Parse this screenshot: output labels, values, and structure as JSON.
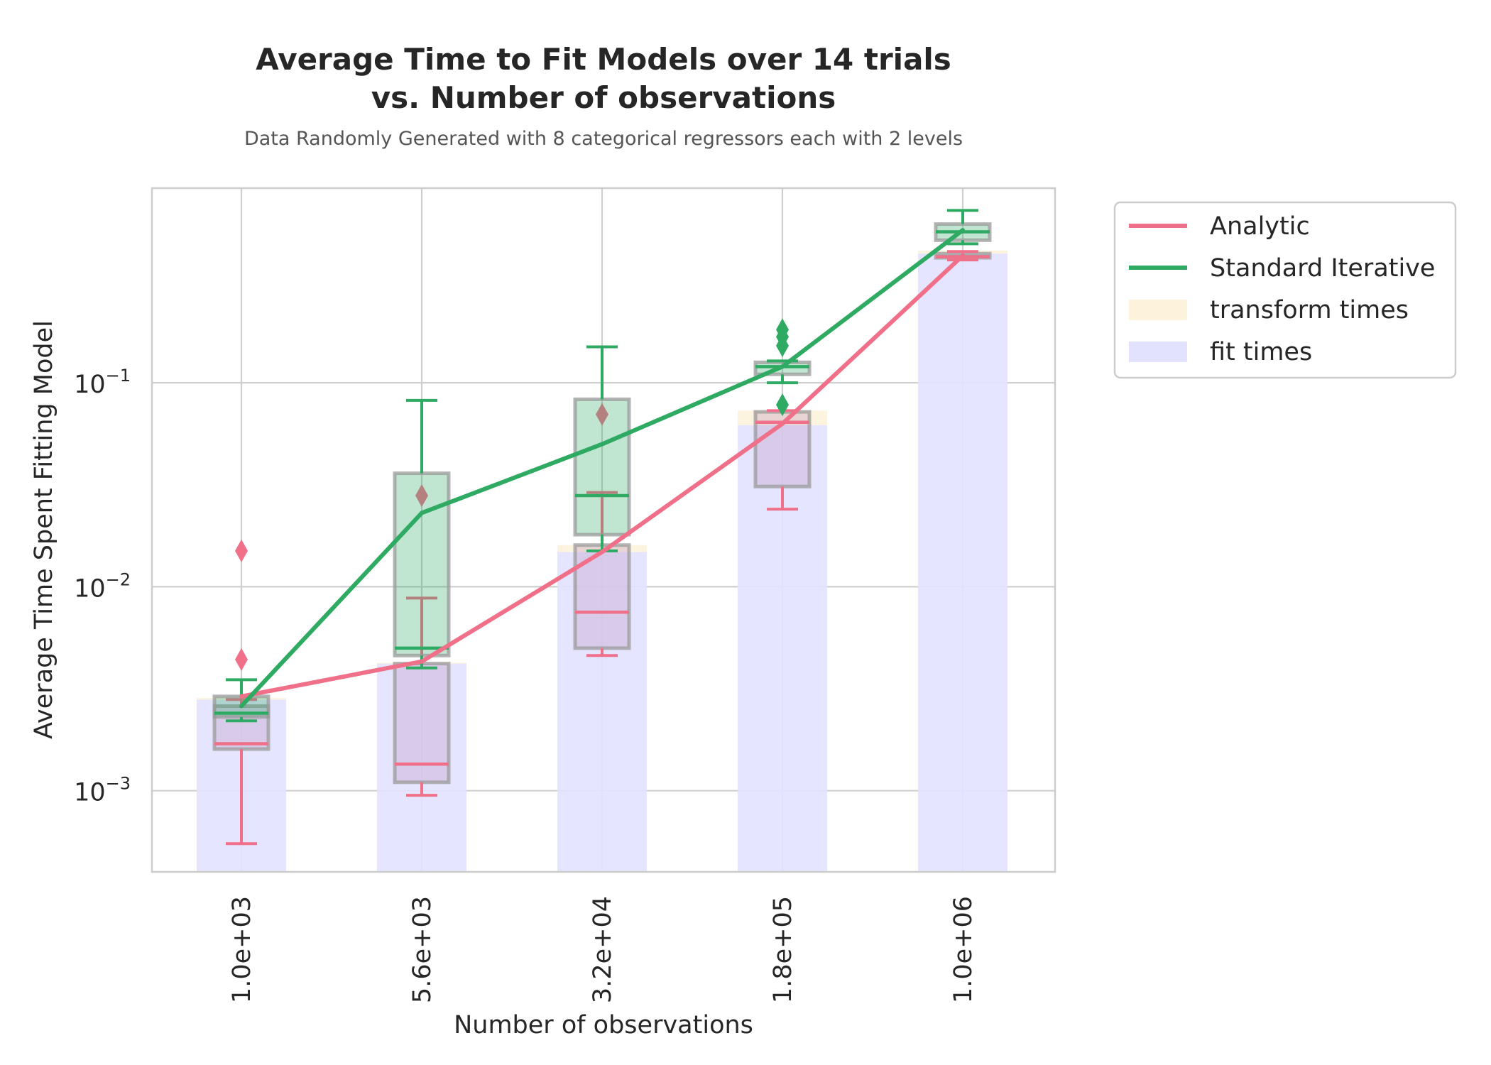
{
  "chart_data": {
    "type": "box+line+bar",
    "title_line1": "Average Time to Fit Models over 14 trials",
    "title_line2": "vs. Number of observations",
    "subtitle": "Data Randomly Generated with 8 categorical regressors each with 2 levels",
    "xlabel": "Number of observations",
    "ylabel": "Average Time Spent Fitting Model",
    "y_scale": "log",
    "ylim": [
      0.0004,
      0.9
    ],
    "y_ticks": [
      {
        "value": 0.001,
        "base": "10",
        "exp": "−3"
      },
      {
        "value": 0.01,
        "base": "10",
        "exp": "−2"
      },
      {
        "value": 0.1,
        "base": "10",
        "exp": "−1"
      }
    ],
    "categories": [
      "1.0e+03",
      "5.6e+03",
      "3.2e+04",
      "1.8e+05",
      "1.0e+06"
    ],
    "grid": true,
    "legend_position": "outside-right-top",
    "colors": {
      "analytic": "#f0708a",
      "iterative": "#2eaa62",
      "transform": "#fdf3dc",
      "fit": "#e2e2ff",
      "box_edge": "#9a9a9a",
      "grid": "#cfcfcf",
      "frame": "#cccccc"
    },
    "bars": {
      "fit_times": [
        0.0028,
        0.0042,
        0.0148,
        0.062,
        0.43
      ],
      "transform_times": [
        5e-05,
        5e-05,
        0.0012,
        0.011,
        0.015
      ]
    },
    "series": [
      {
        "name": "Analytic",
        "values": [
          0.0029,
          0.0043,
          0.0148,
          0.063,
          0.42
        ],
        "boxes": [
          {
            "whislo": 0.00055,
            "q1": 0.0016,
            "med": 0.0017,
            "q3": 0.0026,
            "whishi": 0.0028,
            "fliers": [
              0.0044,
              0.015
            ]
          },
          {
            "whislo": 0.00095,
            "q1": 0.0011,
            "med": 0.00135,
            "q3": 0.0042,
            "whishi": 0.0088,
            "fliers": [
              0.028
            ]
          },
          {
            "whislo": 0.0046,
            "q1": 0.005,
            "med": 0.0075,
            "q3": 0.016,
            "whishi": 0.029,
            "fliers": [
              0.07
            ]
          },
          {
            "whislo": 0.024,
            "q1": 0.031,
            "med": 0.064,
            "q3": 0.072,
            "whishi": 0.073,
            "fliers": []
          },
          {
            "whislo": 0.4,
            "q1": 0.41,
            "med": 0.415,
            "q3": 0.43,
            "whishi": 0.44,
            "fliers": []
          }
        ]
      },
      {
        "name": "Standard Iterative",
        "values": [
          0.0026,
          0.023,
          0.05,
          0.12,
          0.56
        ],
        "boxes": [
          {
            "whislo": 0.0022,
            "q1": 0.0023,
            "med": 0.0024,
            "q3": 0.0029,
            "whishi": 0.0035,
            "fliers": []
          },
          {
            "whislo": 0.004,
            "q1": 0.0046,
            "med": 0.005,
            "q3": 0.036,
            "whishi": 0.082,
            "fliers": []
          },
          {
            "whislo": 0.015,
            "q1": 0.018,
            "med": 0.028,
            "q3": 0.083,
            "whishi": 0.15,
            "fliers": []
          },
          {
            "whislo": 0.1,
            "q1": 0.11,
            "med": 0.12,
            "q3": 0.126,
            "whishi": 0.128,
            "fliers": [
              0.078,
              0.152,
              0.168,
              0.182
            ]
          },
          {
            "whislo": 0.48,
            "q1": 0.5,
            "med": 0.55,
            "q3": 0.6,
            "whishi": 0.7,
            "fliers": []
          }
        ]
      }
    ],
    "legend": {
      "analytic": "Analytic",
      "iterative": "Standard Iterative",
      "transform": "transform times",
      "fit": "fit times"
    }
  }
}
